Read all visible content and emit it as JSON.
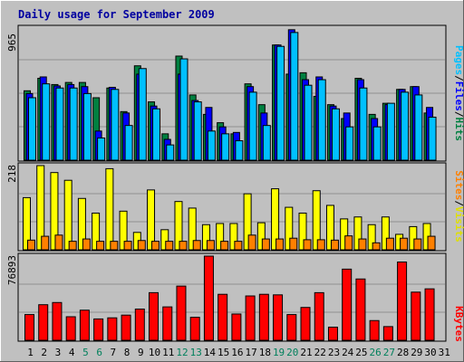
{
  "chart_data": [
    {
      "type": "bar",
      "title": "Daily usage for September 2009",
      "categories": [
        "1",
        "2",
        "3",
        "4",
        "5",
        "6",
        "7",
        "8",
        "9",
        "10",
        "11",
        "12",
        "13",
        "14",
        "15",
        "16",
        "17",
        "18",
        "19",
        "20",
        "21",
        "22",
        "23",
        "24",
        "25",
        "26",
        "27",
        "28",
        "29",
        "30",
        "31"
      ],
      "weekend_days": [
        "5",
        "6",
        "12",
        "13",
        "19",
        "20",
        "26",
        "27"
      ],
      "ylim": [
        0,
        965
      ],
      "ymax_label": "965",
      "axis_label_parts": [
        "Pages",
        "/",
        "Files",
        "/",
        "Hits"
      ],
      "series": [
        {
          "name": "Hits",
          "color": "#008040",
          "values": [
            500,
            590,
            545,
            560,
            560,
            450,
            520,
            350,
            680,
            420,
            190,
            750,
            470,
            330,
            270,
            190,
            550,
            400,
            830,
            620,
            630,
            460,
            400,
            300,
            590,
            330,
            410,
            510,
            530,
            340,
            0
          ]
        },
        {
          "name": "Files",
          "color": "#0000ff",
          "values": [
            480,
            600,
            535,
            545,
            530,
            210,
            525,
            340,
            620,
            390,
            150,
            620,
            430,
            380,
            240,
            200,
            530,
            340,
            830,
            940,
            580,
            600,
            390,
            340,
            580,
            300,
            400,
            510,
            530,
            380,
            0
          ]
        },
        {
          "name": "Pages",
          "color": "#00c0ff",
          "values": [
            450,
            550,
            520,
            520,
            480,
            160,
            510,
            250,
            660,
            370,
            110,
            730,
            420,
            210,
            190,
            140,
            490,
            250,
            820,
            920,
            540,
            580,
            370,
            240,
            520,
            240,
            410,
            490,
            470,
            310,
            0
          ]
        }
      ]
    },
    {
      "type": "bar",
      "ylim": [
        0,
        218
      ],
      "ymax_label": "218",
      "axis_label_parts": [
        "Sites",
        "/",
        "Visits"
      ],
      "series": [
        {
          "name": "Visits",
          "color": "#ffff00",
          "values": [
            135,
            218,
            200,
            180,
            133,
            95,
            210,
            100,
            45,
            155,
            52,
            125,
            108,
            65,
            68,
            68,
            145,
            70,
            158,
            110,
            95,
            153,
            115,
            80,
            85,
            65,
            85,
            40,
            60,
            68,
            0
          ]
        },
        {
          "name": "Sites",
          "color": "#ff8000",
          "values": [
            25,
            35,
            38,
            22,
            28,
            22,
            22,
            22,
            24,
            22,
            22,
            22,
            24,
            24,
            22,
            22,
            38,
            28,
            28,
            30,
            26,
            26,
            25,
            36,
            28,
            18,
            30,
            30,
            28,
            35,
            0
          ]
        }
      ]
    },
    {
      "type": "bar",
      "ylim": [
        0,
        76893
      ],
      "ymax_label": "76893",
      "axis_label_parts": [
        "KBytes"
      ],
      "series": [
        {
          "name": "KBytes",
          "color": "#ff0000",
          "values": [
            23500,
            32500,
            34500,
            21500,
            27500,
            19500,
            20500,
            23000,
            28500,
            43500,
            30500,
            49500,
            21000,
            76893,
            42000,
            24000,
            40500,
            42000,
            41500,
            23500,
            30000,
            43500,
            12000,
            65000,
            56000,
            18000,
            12500,
            71500,
            44000,
            47000,
            0
          ]
        }
      ]
    }
  ],
  "colors": {
    "title": "#0000a0",
    "plot_background": "#c0c0c0",
    "outer_background": "#c0c0c0",
    "weekend_label": "#00805c",
    "weekday_label": "#000000",
    "Hits": "#008040",
    "Files": "#0000ff",
    "Pages": "#00c0ff",
    "Visits": "#ffff00",
    "Sites": "#ff8000",
    "KBytes": "#ff0000"
  }
}
